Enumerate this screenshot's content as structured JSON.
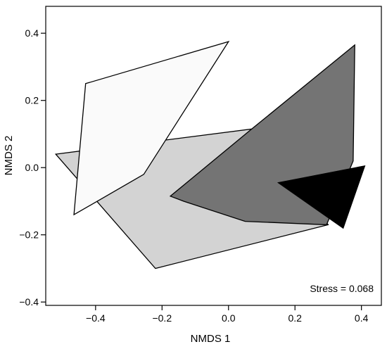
{
  "chart_data": {
    "type": "scatter",
    "subtype": "convex-hull polygons",
    "title": "",
    "xlabel": "NMDS 1",
    "ylabel": "NMDS 2",
    "xlim": [
      -0.55,
      0.46
    ],
    "ylim": [
      -0.41,
      0.48
    ],
    "xticks": [
      -0.4,
      -0.2,
      0.0,
      0.2,
      0.4
    ],
    "yticks": [
      -0.4,
      -0.2,
      0.0,
      0.2,
      0.4
    ],
    "xtick_labels": [
      "−0.4",
      "−0.2",
      "0.0",
      "0.2",
      "0.4"
    ],
    "ytick_labels": [
      "−0.4",
      "−0.2",
      "0.0",
      "0.2",
      "0.4"
    ],
    "grid": false,
    "annotation": "Stress = 0.068",
    "series": [
      {
        "fill": "#d3d3d3",
        "points": [
          [
            -0.52,
            0.04
          ],
          [
            0.07,
            0.115
          ],
          [
            0.3,
            -0.17
          ],
          [
            -0.22,
            -0.3
          ]
        ]
      },
      {
        "fill": "#fafafa",
        "points": [
          [
            -0.43,
            0.25
          ],
          [
            0.0,
            0.375
          ],
          [
            -0.255,
            -0.02
          ],
          [
            -0.465,
            -0.14
          ]
        ]
      },
      {
        "fill": "#747474",
        "points": [
          [
            -0.175,
            -0.085
          ],
          [
            0.07,
            0.115
          ],
          [
            0.38,
            0.365
          ],
          [
            0.375,
            0.02
          ],
          [
            0.295,
            -0.17
          ],
          [
            0.05,
            -0.16
          ],
          [
            -0.135,
            -0.1
          ]
        ]
      },
      {
        "fill": "#000000",
        "points": [
          [
            0.15,
            -0.045
          ],
          [
            0.41,
            0.005
          ],
          [
            0.345,
            -0.18
          ]
        ]
      }
    ]
  }
}
